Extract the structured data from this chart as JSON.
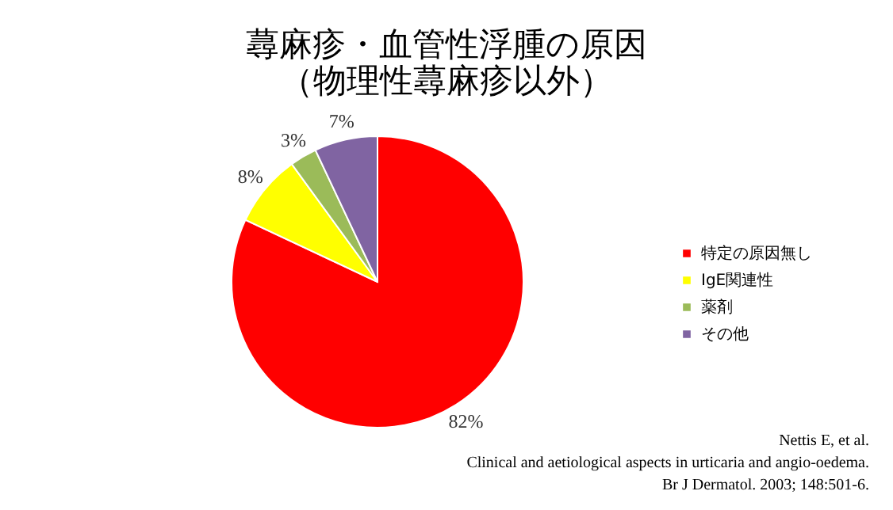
{
  "chart_data": {
    "type": "pie",
    "title": "蕁麻疹・血管性浮腫の原因",
    "subtitle": "（物理性蕁麻疹以外）",
    "categories": [
      "特定の原因無し",
      "IgE関連性",
      "薬剤",
      "その他"
    ],
    "values": [
      82,
      8,
      3,
      7
    ],
    "colors": [
      "#ff0000",
      "#ffff00",
      "#9bbb59",
      "#8064a2"
    ],
    "value_labels": [
      "82%",
      "8%",
      "3%",
      "7%"
    ],
    "legend": "right",
    "annotations": [
      "Nettis E, et al.",
      "Clinical and aetiological aspects in urticaria and angio-oedema.",
      "Br J Dermatol. 2003; 148:501-6."
    ]
  }
}
